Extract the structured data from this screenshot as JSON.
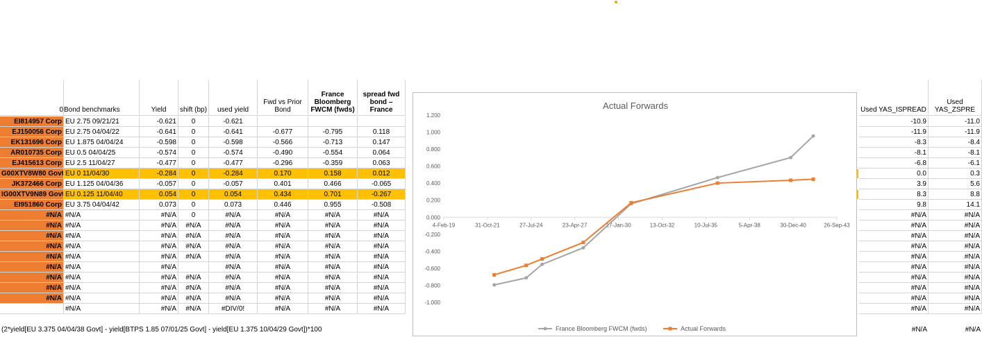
{
  "headers": {
    "col0": "0",
    "bond": "Bond benchmarks",
    "yield": "Yield",
    "shift": "shift (bp)",
    "used_yield": "used yield",
    "fwd_vs_prior": "Fwd vs Prior Bond",
    "france_fwcm": "France Bloomberg FWCM (fwds)",
    "spread_fwd": "spread fwd bond – France",
    "yas_ispread": "Used YAS_ISPREAD",
    "yas_zspread": "Used YAS_ZSPRE"
  },
  "rows": [
    {
      "ticker": "EI814957 Corp",
      "bond": "EU 2.75 09/21/21",
      "yield": "-0.621",
      "shift": "0",
      "used": "-0.621",
      "fwd": "",
      "fr": "",
      "spread": "",
      "ispread": "-10.9",
      "zspread": "-11.0",
      "hl": false
    },
    {
      "ticker": "EJ150056 Corp",
      "bond": "EU 2.75 04/04/22",
      "yield": "-0.641",
      "shift": "0",
      "used": "-0.641",
      "fwd": "-0.677",
      "fr": "-0.795",
      "spread": "0.118",
      "ispread": "-11.9",
      "zspread": "-11.9",
      "hl": false
    },
    {
      "ticker": "EK131696 Corp",
      "bond": "EU 1.875 04/04/24",
      "yield": "-0.598",
      "shift": "0",
      "used": "-0.598",
      "fwd": "-0.566",
      "fr": "-0.713",
      "spread": "0.147",
      "ispread": "-8.3",
      "zspread": "-8.4",
      "hl": false
    },
    {
      "ticker": "AR010735 Corp",
      "bond": "EU 0.5 04/04/25",
      "yield": "-0.574",
      "shift": "0",
      "used": "-0.574",
      "fwd": "-0.490",
      "fr": "-0.554",
      "spread": "0.064",
      "ispread": "-8.1",
      "zspread": "-8.1",
      "hl": false
    },
    {
      "ticker": "EJ415613 Corp",
      "bond": "EU 2.5 11/04/27",
      "yield": "-0.477",
      "shift": "0",
      "used": "-0.477",
      "fwd": "-0.296",
      "fr": "-0.359",
      "spread": "0.063",
      "ispread": "-6.8",
      "zspread": "-6.1",
      "hl": false
    },
    {
      "ticker": "G00XTV8W80 Govt",
      "bond": "EU 0 11/04/30",
      "yield": "-0.284",
      "shift": "0",
      "used": "-0.284",
      "fwd": "0.170",
      "fr": "0.158",
      "spread": "0.012",
      "ispread": "0.0",
      "zspread": "0.3",
      "hl": true
    },
    {
      "ticker": "JK372466 Corp",
      "bond": "EU 1.125 04/04/36",
      "yield": "-0.057",
      "shift": "0",
      "used": "-0.057",
      "fwd": "0.401",
      "fr": "0.466",
      "spread": "-0.065",
      "ispread": "3.9",
      "zspread": "5.6",
      "hl": false
    },
    {
      "ticker": "IG00XTV9N89 Govt",
      "bond": "EU 0.125 11/04/40",
      "yield": "0.054",
      "shift": "0",
      "used": "0.054",
      "fwd": "0.434",
      "fr": "0.701",
      "spread": "-0.267",
      "ispread": "8.3",
      "zspread": "8.8",
      "hl": true
    },
    {
      "ticker": "EI951860 Corp",
      "bond": "EU 3.75 04/04/42",
      "yield": "0.073",
      "shift": "0",
      "used": "0.073",
      "fwd": "0.446",
      "fr": "0.955",
      "spread": "-0.508",
      "ispread": "9.8",
      "zspread": "14.1",
      "hl": false
    },
    {
      "ticker": "#N/A",
      "bond": "#N/A",
      "yield": "#N/A",
      "shift": "0",
      "used": "#N/A",
      "fwd": "#N/A",
      "fr": "#N/A",
      "spread": "#N/A",
      "ispread": "#N/A",
      "zspread": "#N/A",
      "hl": false
    },
    {
      "ticker": "#N/A",
      "bond": "#N/A",
      "yield": "#N/A",
      "shift": "#N/A",
      "used": "#N/A",
      "fwd": "#N/A",
      "fr": "#N/A",
      "spread": "#N/A",
      "ispread": "#N/A",
      "zspread": "#N/A",
      "hl": false
    },
    {
      "ticker": "#N/A",
      "bond": "#N/A",
      "yield": "#N/A",
      "shift": "#N/A",
      "used": "#N/A",
      "fwd": "#N/A",
      "fr": "#N/A",
      "spread": "#N/A",
      "ispread": "#N/A",
      "zspread": "#N/A",
      "hl": false
    },
    {
      "ticker": "#N/A",
      "bond": "#N/A",
      "yield": "#N/A",
      "shift": "#N/A",
      "used": "#N/A",
      "fwd": "#N/A",
      "fr": "#N/A",
      "spread": "#N/A",
      "ispread": "#N/A",
      "zspread": "#N/A",
      "hl": false
    },
    {
      "ticker": "#N/A",
      "bond": "#N/A",
      "yield": "#N/A",
      "shift": "#N/A",
      "used": "#N/A",
      "fwd": "#N/A",
      "fr": "#N/A",
      "spread": "#N/A",
      "ispread": "#N/A",
      "zspread": "#N/A",
      "hl": false
    },
    {
      "ticker": "#N/A",
      "bond": "#N/A",
      "yield": "#N/A",
      "shift": "",
      "used": "#N/A",
      "fwd": "#N/A",
      "fr": "#N/A",
      "spread": "#N/A",
      "ispread": "#N/A",
      "zspread": "#N/A",
      "hl": false
    },
    {
      "ticker": "#N/A",
      "bond": "#N/A",
      "yield": "#N/A",
      "shift": "#N/A",
      "used": "#N/A",
      "fwd": "#N/A",
      "fr": "#N/A",
      "spread": "#N/A",
      "ispread": "#N/A",
      "zspread": "#N/A",
      "hl": false
    },
    {
      "ticker": "#N/A",
      "bond": "#N/A",
      "yield": "#N/A",
      "shift": "#N/A",
      "used": "#N/A",
      "fwd": "#N/A",
      "fr": "#N/A",
      "spread": "#N/A",
      "ispread": "#N/A",
      "zspread": "#N/A",
      "hl": false
    },
    {
      "ticker": "#N/A",
      "bond": "#N/A",
      "yield": "#N/A",
      "shift": "#N/A",
      "used": "#N/A",
      "fwd": "#N/A",
      "fr": "#N/A",
      "spread": "#N/A",
      "ispread": "#N/A",
      "zspread": "#N/A",
      "hl": false
    },
    {
      "ticker": "",
      "bond": "#N/A",
      "yield": "#N/A",
      "shift": "#N/A",
      "used": "#DIV/0!",
      "fwd": "#N/A",
      "fr": "#N/A",
      "spread": "#N/A",
      "ispread": "#N/A",
      "zspread": "#N/A",
      "hl": false
    }
  ],
  "formula": "(2*yield[EU 3.375 04/04/38 Govt] - yield[BTPS 1.85 07/01/25 Govt] - yield[EU 1.375 10/04/29 Govt])*100",
  "formula_ispread": "#N/A",
  "formula_zspread": "#N/A",
  "colors": {
    "orange": "#ed7d31",
    "highlight": "#ffc000",
    "gray_series": "#a5a5a5",
    "orange_series": "#ed7d31"
  },
  "chart_data": {
    "type": "line",
    "title": "Actual Forwards",
    "x_axis_type": "date",
    "x_ticks": [
      "4-Feb-19",
      "31-Oct-21",
      "27-Jul-24",
      "23-Apr-27",
      "17-Jan-30",
      "13-Oct-32",
      "10-Jul-35",
      "5-Apr-38",
      "30-Dec-40",
      "26-Sep-43"
    ],
    "y_ticks": [
      "1.200",
      "1.000",
      "0.800",
      "0.600",
      "0.400",
      "0.200",
      "0.000",
      "-0.200",
      "-0.400",
      "-0.600",
      "-0.800",
      "-1.000"
    ],
    "ylim": [
      -1.0,
      1.2
    ],
    "xlim": [
      "2019-02-04",
      "2043-09-26"
    ],
    "legend_position": "bottom",
    "grid": false,
    "series": [
      {
        "name": "France Bloomberg FWCM (fwds)",
        "color": "#a5a5a5",
        "marker": "circle",
        "x": [
          "2022-04-04",
          "2024-04-04",
          "2025-04-04",
          "2027-11-04",
          "2030-11-04",
          "2036-04-04",
          "2040-11-04",
          "2042-04-04"
        ],
        "y": [
          -0.795,
          -0.713,
          -0.554,
          -0.359,
          0.158,
          0.466,
          0.701,
          0.955
        ]
      },
      {
        "name": "Actual Forwards",
        "color": "#ed7d31",
        "marker": "square",
        "x": [
          "2022-04-04",
          "2024-04-04",
          "2025-04-04",
          "2027-11-04",
          "2030-11-04",
          "2036-04-04",
          "2040-11-04",
          "2042-04-04"
        ],
        "y": [
          -0.677,
          -0.566,
          -0.49,
          -0.296,
          0.17,
          0.401,
          0.434,
          0.446
        ]
      }
    ]
  }
}
